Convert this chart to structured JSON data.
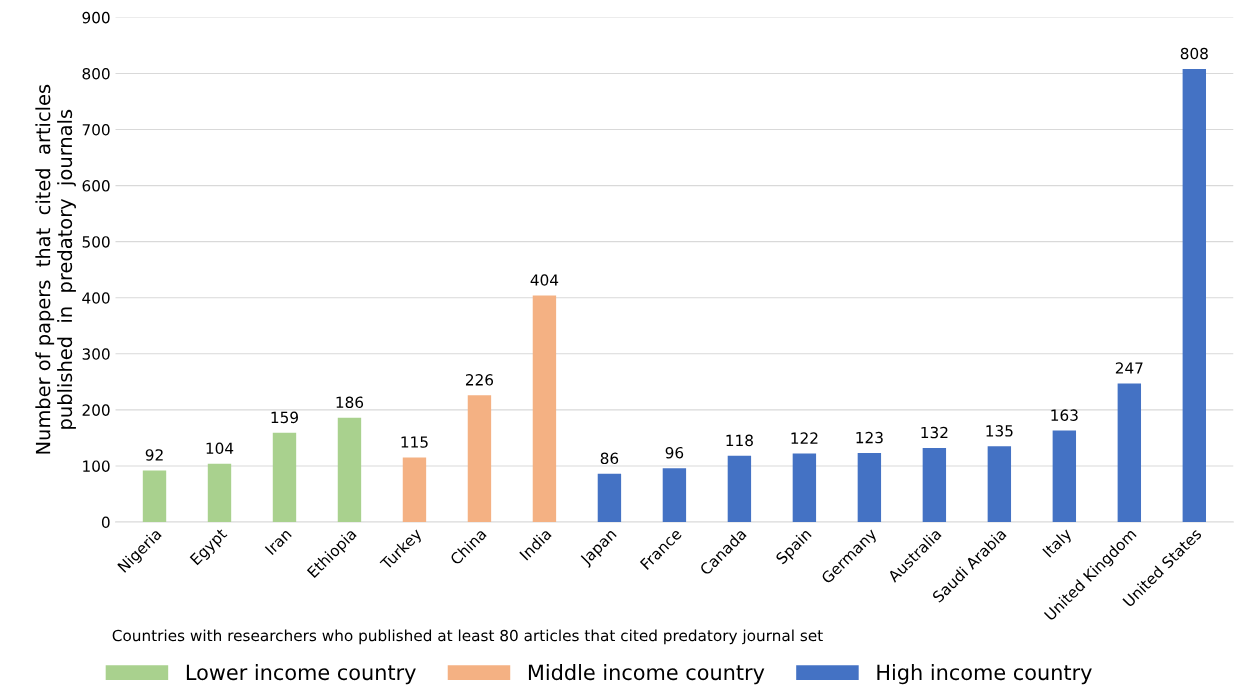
{
  "chart_data": {
    "type": "bar",
    "xlabel": "Countries with researchers who published at least 80 articles that cited predatory journal set",
    "ylabel": "Number of papers  that  cited  articles\npublished  in  predatory  journals",
    "categories": [
      "Nigeria",
      "Egypt",
      "Iran",
      "Ethiopia",
      "Turkey",
      "China",
      "India",
      "Japan",
      "France",
      "Canada",
      "Spain",
      "Germany",
      "Australia",
      "Saudi Arabia",
      "Italy",
      "United Kingdom",
      "United States"
    ],
    "series": [
      {
        "name": "Lower income country",
        "color": "#a9d18e",
        "values": [
          92,
          104,
          159,
          186,
          null,
          null,
          null,
          null,
          null,
          null,
          null,
          null,
          null,
          null,
          null,
          null,
          null
        ]
      },
      {
        "name": "Middle income country",
        "color": "#f4b183",
        "values": [
          null,
          null,
          null,
          null,
          115,
          226,
          404,
          null,
          null,
          null,
          null,
          null,
          null,
          null,
          null,
          null,
          null
        ]
      },
      {
        "name": "High income country",
        "color": "#4472c4",
        "values": [
          null,
          null,
          null,
          null,
          null,
          null,
          null,
          86,
          96,
          118,
          122,
          123,
          132,
          135,
          163,
          247,
          808
        ]
      }
    ],
    "ylim": [
      0,
      900
    ],
    "yticks": [
      0,
      100,
      200,
      300,
      400,
      500,
      600,
      700,
      800,
      900
    ],
    "grid": "y",
    "legend": "bottom",
    "data_labels": true
  }
}
